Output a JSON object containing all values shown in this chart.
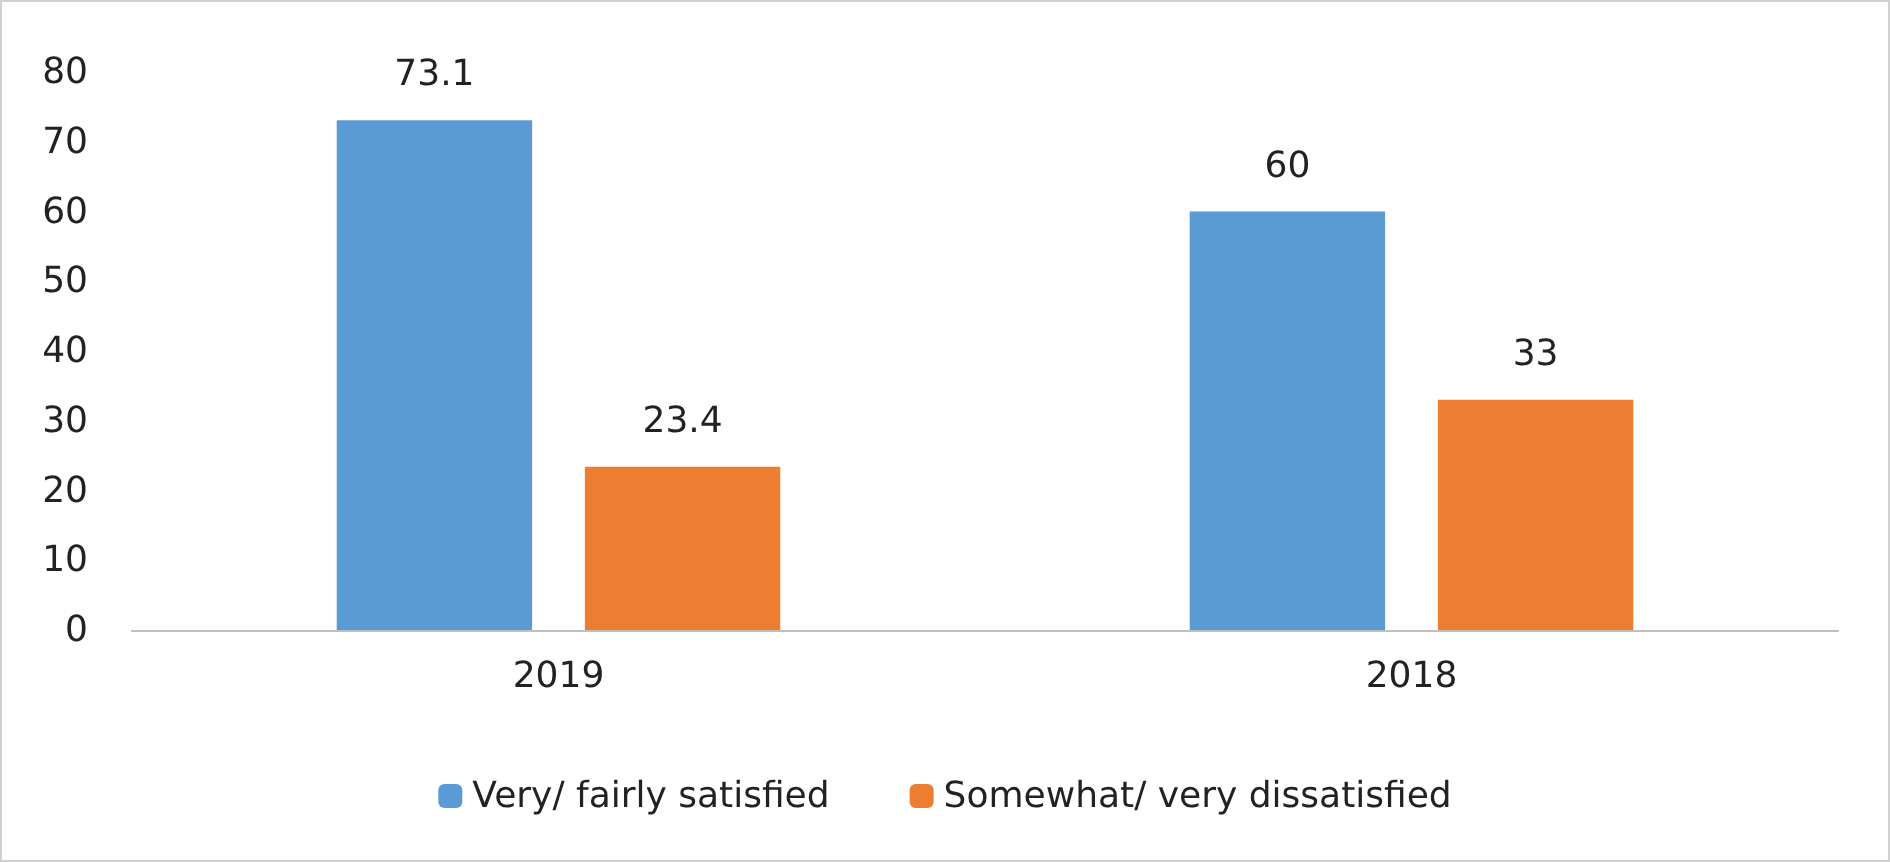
{
  "chart_data": {
    "type": "bar",
    "categories": [
      "2019",
      "2018"
    ],
    "series": [
      {
        "name": "Very/ fairly satisfied",
        "color": "#5b9bd5",
        "values": [
          73.1,
          60
        ]
      },
      {
        "name": "Somewhat/ very dissatisfied",
        "color": "#ed7d31",
        "values": [
          23.4,
          33
        ]
      }
    ],
    "ylim": [
      0,
      80
    ],
    "yticks": [
      0,
      10,
      20,
      30,
      40,
      50,
      60,
      70,
      80
    ],
    "data_labels": true,
    "legend": "bottom",
    "grid": false
  }
}
